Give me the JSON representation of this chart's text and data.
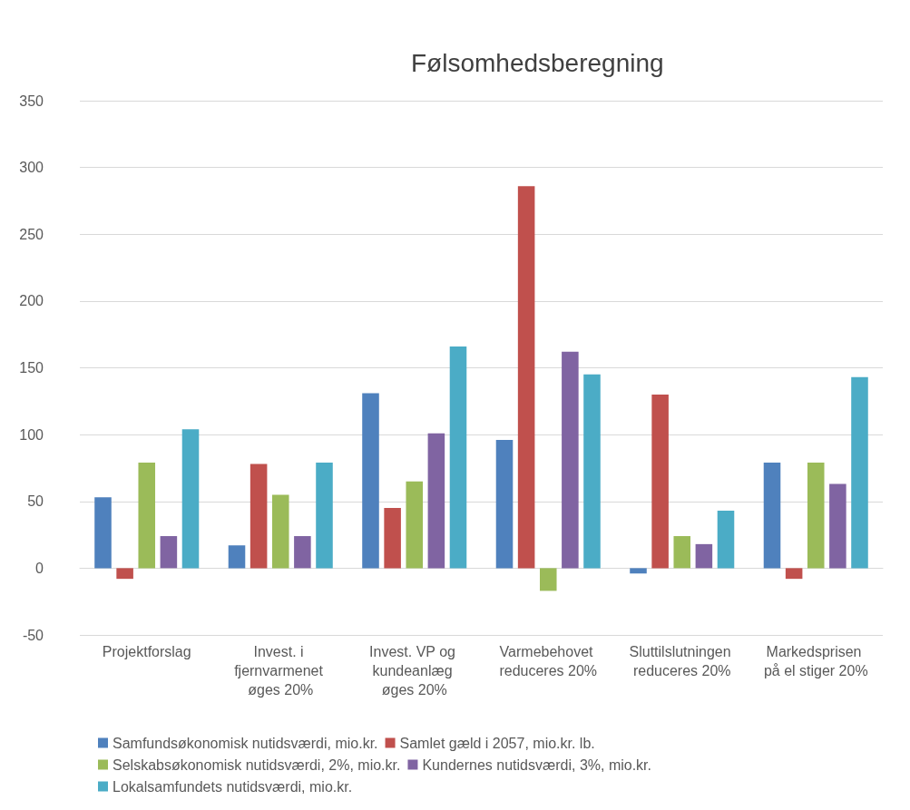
{
  "chart_data": {
    "type": "bar",
    "title": "Følsomhedsberegning",
    "categories": [
      "Projektforslag",
      "Invest. i fjernvarmenet øges 20%",
      "Invest. VP og kundeanlæg øges 20%",
      "Varmebehovet reduceres 20%",
      "Sluttilslutningen reduceres 20%",
      "Markedsprisen på el stiger 20%"
    ],
    "series": [
      {
        "name": "Samfundsøkonomisk nutidsværdi, mio.kr.",
        "color": "#4f81bd",
        "values": [
          53,
          17,
          131,
          96,
          -4,
          79
        ]
      },
      {
        "name": "Samlet gæld i 2057, mio.kr. lb.",
        "color": "#c0504d",
        "values": [
          -8,
          78,
          45,
          286,
          130,
          -8
        ]
      },
      {
        "name": "Selskabsøkonomisk nutidsværdi, 2%, mio.kr.",
        "color": "#9bbb59",
        "values": [
          79,
          55,
          65,
          -17,
          24,
          79
        ]
      },
      {
        "name": "Kundernes nutidsværdi, 3%, mio.kr.",
        "color": "#8064a2",
        "values": [
          24,
          24,
          101,
          162,
          18,
          63
        ]
      },
      {
        "name": "Lokalsamfundets nutidsværdi, mio.kr.",
        "color": "#4bacc6",
        "values": [
          104,
          79,
          166,
          145,
          43,
          143
        ]
      }
    ],
    "ylim": [
      -50,
      350
    ],
    "yticks": [
      -50,
      0,
      50,
      100,
      150,
      200,
      250,
      300,
      350
    ],
    "grid": "y",
    "legend": "bottom"
  }
}
